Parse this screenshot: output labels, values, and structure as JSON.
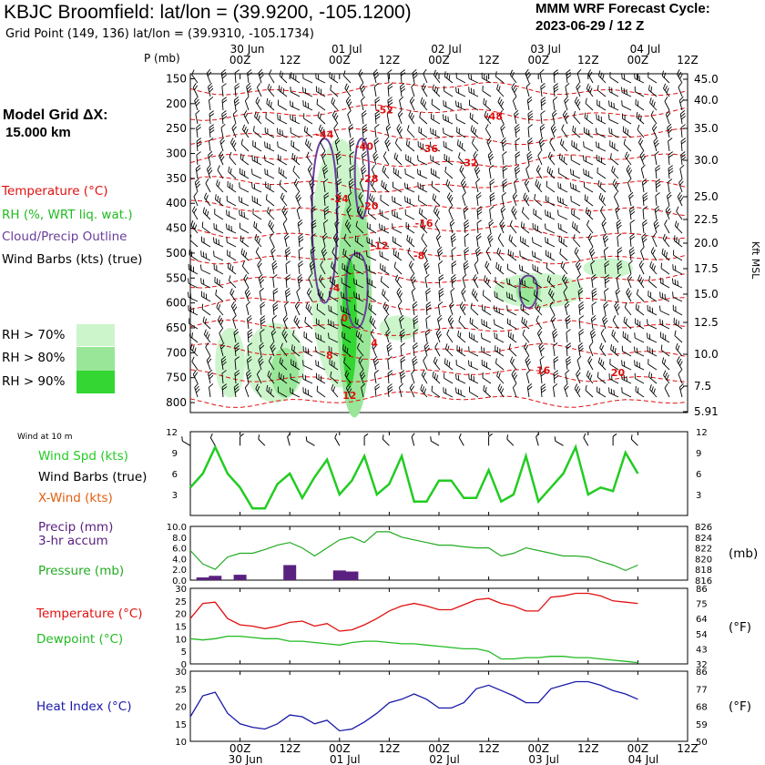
{
  "header": {
    "title": "KBJC Broomfield:  lat/lon = (39.9200, -105.1200)",
    "grid_point": "Grid Point (149, 136) lat/lon = (39.9310, -105.1734)",
    "cycle_title": "MMM WRF Forecast Cycle:",
    "cycle_value": "2023-06-29 / 12  Z"
  },
  "model_grid": {
    "label": "Model Grid ΔX:",
    "value": "15.000 km"
  },
  "legend": {
    "temperature": "Temperature (°C)",
    "rh": "RH (%, WRT liq. wat.)",
    "cloud": "Cloud/Precip Outline",
    "wind_barbs": "Wind Barbs (kts) (true)",
    "rh70": "RH > 70%",
    "rh80": "RH > 80%",
    "rh90": "RH > 90%"
  },
  "colors": {
    "temperature": "#e01010",
    "rh70": "#ccf5cc",
    "rh80": "#99e699",
    "rh90": "#33d633",
    "cloud": "#6a3d9a",
    "wind_speed": "#22cc22",
    "pressure": "#22aa22",
    "dewpoint": "#22bb22",
    "heat_index": "#1a1aaa",
    "precip": "#5a2080",
    "xwind": "#e06010"
  },
  "time_axis": {
    "ticks": [
      "00Z",
      "12Z",
      "00Z",
      "12Z",
      "00Z",
      "12Z",
      "00Z",
      "12Z",
      "00Z",
      "12Z"
    ],
    "top_dates": [
      "30 Jun",
      "01 Jul",
      "02 Jul",
      "03 Jul",
      "04 Jul"
    ],
    "bottom_dates": [
      "30 Jun",
      "01 Jul",
      "02 Jul",
      "03 Jul",
      "04 Jul"
    ]
  },
  "chart_data": [
    {
      "type": "heatmap",
      "name": "sounding-cross-section",
      "y_axis_label": "P (mb)",
      "pressure_ticks": [
        150,
        200,
        250,
        300,
        350,
        400,
        450,
        500,
        550,
        600,
        650,
        700,
        750,
        800
      ],
      "height_label": "Kft MSL",
      "height_ticks": [
        "45.0",
        "40.0",
        "35.0",
        "30.0",
        "25.0",
        "22.5",
        "20.0",
        "17.5",
        "15.0",
        "12.5",
        "10.0",
        "7.5",
        "5.91"
      ],
      "temperature_labels": [
        {
          "text": "-52",
          "x": 39,
          "p": 212
        },
        {
          "text": "-48",
          "x": 61,
          "p": 225
        },
        {
          "text": "-44",
          "x": 27,
          "p": 262
        },
        {
          "text": "-40",
          "x": 35,
          "p": 285
        },
        {
          "text": "-36",
          "x": 48,
          "p": 290
        },
        {
          "text": "-32",
          "x": 56,
          "p": 318
        },
        {
          "text": "-28",
          "x": 36,
          "p": 350
        },
        {
          "text": "-24",
          "x": 30,
          "p": 390
        },
        {
          "text": "-20",
          "x": 36,
          "p": 405
        },
        {
          "text": "-16",
          "x": 47,
          "p": 440
        },
        {
          "text": "-12",
          "x": 38,
          "p": 485
        },
        {
          "text": "-8",
          "x": 46,
          "p": 505
        },
        {
          "text": "-4",
          "x": 29,
          "p": 570
        },
        {
          "text": "0",
          "x": 31,
          "p": 630
        },
        {
          "text": "4",
          "x": 37,
          "p": 680
        },
        {
          "text": "8",
          "x": 28,
          "p": 705
        },
        {
          "text": "12",
          "x": 32,
          "p": 785
        },
        {
          "text": "16",
          "x": 71,
          "p": 735
        },
        {
          "text": "20",
          "x": 86,
          "p": 740
        }
      ],
      "rh_regions": [
        {
          "level": 90,
          "cx": 32,
          "p": 640,
          "rx": 1.5,
          "rp": 130
        },
        {
          "level": 80,
          "cx": 33,
          "p": 600,
          "rx": 3.5,
          "rp": 230
        },
        {
          "level": 70,
          "cx": 30,
          "p": 520,
          "rx": 6,
          "rp": 250
        },
        {
          "level": 80,
          "cx": 19,
          "p": 740,
          "rx": 2.8,
          "rp": 50
        },
        {
          "level": 70,
          "cx": 17,
          "p": 720,
          "rx": 6,
          "rp": 80
        },
        {
          "level": 70,
          "cx": 8,
          "p": 720,
          "rx": 3,
          "rp": 70
        },
        {
          "level": 70,
          "cx": 42,
          "p": 650,
          "rx": 4,
          "rp": 25
        },
        {
          "level": 80,
          "cx": 68,
          "p": 575,
          "rx": 2.5,
          "rp": 30
        },
        {
          "level": 70,
          "cx": 70,
          "p": 575,
          "rx": 9,
          "rp": 35
        },
        {
          "level": 70,
          "cx": 84,
          "p": 530,
          "rx": 5,
          "rp": 20
        }
      ]
    },
    {
      "type": "line",
      "name": "wind-speed",
      "title": "Wind at 10 m",
      "series_label": "Wind Spd (kts)",
      "barb_label": "Wind Barbs (true)",
      "xwind_label": "X-Wind (kts)",
      "yticks": [
        3,
        6,
        9,
        12
      ],
      "ylim": [
        0,
        12
      ],
      "x": [
        0,
        3,
        6,
        9,
        12,
        15,
        18,
        21,
        24,
        27,
        30,
        33,
        36,
        39,
        42,
        45,
        48,
        51,
        54,
        57,
        60,
        63,
        66,
        69,
        72,
        75,
        78,
        81,
        84,
        87,
        90,
        93,
        96,
        99,
        102,
        105,
        108
      ],
      "values": [
        4,
        6,
        9.8,
        6,
        4,
        1,
        1,
        4.5,
        6,
        2.5,
        5.5,
        8,
        3,
        5,
        8.5,
        3,
        4.5,
        8.5,
        2,
        2,
        5,
        5,
        2.5,
        2.5,
        6.5,
        2,
        3,
        8.5,
        2,
        4,
        6,
        9.8,
        3,
        4,
        3.5,
        9,
        6
      ]
    },
    {
      "type": "bar",
      "name": "precip-pressure",
      "precip_label": "Precip (mm)",
      "precip_sub": "3-hr accum",
      "pressure_label": "Pressure (mb)",
      "precip_ticks": [
        "0.0",
        "2.0",
        "4.0",
        "6.0",
        "8.0",
        "10.0"
      ],
      "precip_ylim": [
        0,
        10
      ],
      "pressure_ticks": [
        816,
        818,
        820,
        822,
        824,
        826
      ],
      "pressure_ylim": [
        816,
        826
      ],
      "pressure_unit": "(mb)",
      "precip_x": [
        3,
        6,
        12,
        24,
        36,
        39
      ],
      "precip_values": [
        0.5,
        0.8,
        1.0,
        2.8,
        1.8,
        1.6
      ],
      "pressure_x": [
        0,
        3,
        6,
        9,
        12,
        15,
        18,
        21,
        24,
        27,
        30,
        33,
        36,
        39,
        42,
        45,
        48,
        51,
        54,
        57,
        60,
        63,
        66,
        69,
        72,
        75,
        78,
        81,
        84,
        87,
        90,
        93,
        96,
        99,
        102,
        105,
        108
      ],
      "pressure_values": [
        821.5,
        819,
        818,
        820.3,
        821,
        821,
        821.7,
        822.5,
        823,
        822,
        820.5,
        822,
        823.5,
        824,
        823,
        825,
        825,
        824,
        823.5,
        823,
        822.5,
        822.5,
        822.2,
        822,
        822,
        820.5,
        821,
        822,
        821.5,
        821,
        820.5,
        820.5,
        820.3,
        819.5,
        818.8,
        817.8,
        818.8
      ]
    },
    {
      "type": "line",
      "name": "temperature-dewpoint",
      "temp_label": "Temperature (°C)",
      "dew_label": "Dewpoint (°C)",
      "yticks": [
        0,
        5,
        10,
        15,
        20,
        25,
        30
      ],
      "ylim": [
        0,
        30
      ],
      "f_ticks": [
        "32",
        "43",
        "54",
        "64",
        "75",
        "86"
      ],
      "f_unit": "(°F)",
      "x": [
        0,
        3,
        6,
        9,
        12,
        15,
        18,
        21,
        24,
        27,
        30,
        33,
        36,
        39,
        42,
        45,
        48,
        51,
        54,
        57,
        60,
        63,
        66,
        69,
        72,
        75,
        78,
        81,
        84,
        87,
        90,
        93,
        96,
        99,
        102,
        105,
        108
      ],
      "temperature": [
        18,
        24,
        24.5,
        18,
        15.5,
        15,
        14,
        15,
        16.5,
        17,
        15,
        16,
        13,
        13.5,
        15.5,
        18,
        21,
        23,
        24,
        23,
        21.5,
        21.5,
        23.5,
        25.5,
        26,
        24,
        23,
        21,
        21,
        26.5,
        27,
        28,
        28,
        27,
        25,
        24.5,
        24
      ],
      "dewpoint": [
        10,
        9.5,
        10,
        11,
        11,
        10.5,
        10,
        10,
        9,
        9,
        8.5,
        8,
        7.5,
        8.5,
        9,
        9,
        8.5,
        8,
        8,
        7.5,
        7,
        6.5,
        6,
        6,
        5,
        2,
        2,
        2.5,
        2.5,
        3,
        3,
        2.5,
        2.5,
        2,
        1.5,
        1,
        0.5
      ]
    },
    {
      "type": "line",
      "name": "heat-index",
      "label": "Heat Index (°C)",
      "yticks": [
        10,
        15,
        20,
        25,
        30
      ],
      "ylim": [
        10,
        30
      ],
      "f_ticks": [
        "50",
        "59",
        "68",
        "77",
        "86"
      ],
      "f_unit": "(°F)",
      "x": [
        0,
        3,
        6,
        9,
        12,
        15,
        18,
        21,
        24,
        27,
        30,
        33,
        36,
        39,
        42,
        45,
        48,
        51,
        54,
        57,
        60,
        63,
        66,
        69,
        72,
        75,
        78,
        81,
        84,
        87,
        90,
        93,
        96,
        99,
        102,
        105,
        108
      ],
      "values": [
        17,
        23,
        24,
        18,
        15,
        14,
        13.5,
        15,
        17.5,
        17,
        15,
        16,
        13,
        13.5,
        15.5,
        18,
        21,
        22,
        23.5,
        22,
        19.5,
        19.5,
        21,
        25,
        26,
        24.5,
        23,
        21,
        21,
        25,
        26,
        27,
        27,
        26,
        24.5,
        23.5,
        22
      ]
    }
  ]
}
